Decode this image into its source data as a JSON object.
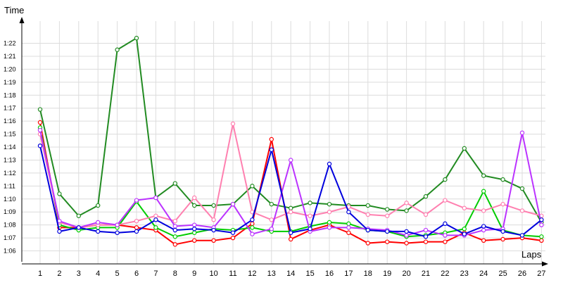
{
  "chart_data": {
    "type": "line",
    "ylabel": "Time",
    "xlabel": "Laps",
    "x": [
      1,
      2,
      3,
      4,
      5,
      6,
      7,
      8,
      9,
      10,
      11,
      12,
      13,
      14,
      15,
      16,
      17,
      18,
      19,
      20,
      21,
      22,
      23,
      24,
      25,
      26,
      27
    ],
    "x_tick_labels": [
      "1",
      "2",
      "3",
      "4",
      "5",
      "6",
      "7",
      "8",
      "9",
      "10",
      "11",
      "12",
      "13",
      "14",
      "15",
      "16",
      "17",
      "18",
      "19",
      "20",
      "21",
      "22",
      "23",
      "24",
      "25",
      "26",
      "27"
    ],
    "y_tick_labels": [
      "1:06",
      "1:07",
      "1:08",
      "1:09",
      "1:10",
      "1:11",
      "1:12",
      "1:13",
      "1:14",
      "1:15",
      "1:16",
      "1:17",
      "1:18",
      "1:19",
      "1:20",
      "1:21",
      "1:22"
    ],
    "ylim": [
      "1:05",
      "1:23.6"
    ],
    "grid": true,
    "series": [
      {
        "color": "#ff0000",
        "values": [
          "1:15.9",
          "1:07.8",
          "1:07.8",
          "1:08.0",
          "1:08.0",
          "1:07.8",
          "1:07.6",
          "1:06.5",
          "1:06.8",
          "1:06.8",
          "1:07.0",
          "1:08.1",
          "1:14.6",
          "1:06.9",
          "1:07.6",
          "1:08.0",
          "1:07.4",
          "1:06.6",
          "1:06.7",
          "1:06.6",
          "1:06.7",
          "1:06.7",
          "1:07.4",
          "1:06.8",
          "1:06.9",
          "1:07.0",
          "1:06.8"
        ]
      },
      {
        "color": "#00cc00",
        "values": [
          "1:15.5",
          "1:08.0",
          "1:07.6",
          "1:07.8",
          "1:07.8",
          "1:09.8",
          "1:07.8",
          "1:07.1",
          "1:07.4",
          "1:07.7",
          "1:07.6",
          "1:07.8",
          "1:07.5",
          "1:07.5",
          "1:07.9",
          "1:08.2",
          "1:08.1",
          "1:07.6",
          "1:07.5",
          "1:07.1",
          "1:07.2",
          "1:07.4",
          "1:07.7",
          "1:10.6",
          "1:07.6",
          "1:07.2",
          "1:07.1"
        ]
      },
      {
        "color": "#228b22",
        "values": [
          "1:16.9",
          "1:10.4",
          "1:08.7",
          "1:09.5",
          "1:21.5",
          "1:22.4",
          "1:10.1",
          "1:11.2",
          "1:09.5",
          "1:09.5",
          "1:09.6",
          "1:11.0",
          "1:09.6",
          "1:09.3",
          "1:09.7",
          "1:09.6",
          "1:09.5",
          "1:09.5",
          "1:09.2",
          "1:09.1",
          "1:10.2",
          "1:11.5",
          "1:13.9",
          "1:11.8",
          "1:11.5",
          "1:10.8",
          "1:08.2"
        ]
      },
      {
        "color": "#ff80b0",
        "values": [
          "1:15.0",
          "1:08.2",
          "1:07.8",
          "1:08.0",
          "1:08.0",
          "1:08.3",
          "1:08.7",
          "1:08.3",
          "1:10.1",
          "1:08.4",
          "1:15.8",
          "1:09.0",
          "1:08.4",
          "1:09.0",
          "1:08.7",
          "1:09.0",
          "1:09.4",
          "1:08.8",
          "1:08.7",
          "1:09.7",
          "1:08.8",
          "1:09.9",
          "1:09.3",
          "1:09.1",
          "1:09.6",
          "1:09.1",
          "1:08.7"
        ]
      },
      {
        "color": "#bb33ff",
        "values": [
          "1:15.3",
          "1:08.3",
          "1:07.8",
          "1:08.2",
          "1:08.0",
          "1:09.9",
          "1:10.1",
          "1:07.9",
          "1:08.0",
          "1:07.8",
          "1:09.6",
          "1:07.3",
          "1:07.7",
          "1:13.0",
          "1:07.5",
          "1:07.8",
          "1:07.8",
          "1:07.7",
          "1:07.6",
          "1:07.2",
          "1:07.6",
          "1:07.2",
          "1:07.2",
          "1:07.6",
          "1:07.7",
          "1:15.1",
          "1:08.0"
        ]
      },
      {
        "color": "#0000dd",
        "values": [
          "1:14.1",
          "1:07.5",
          "1:07.8",
          "1:07.5",
          "1:07.4",
          "1:07.5",
          "1:08.4",
          "1:07.6",
          "1:07.7",
          "1:07.6",
          "1:07.4",
          "1:08.4",
          "1:13.8",
          "1:07.4",
          "1:07.7",
          "1:12.7",
          "1:09.0",
          "1:07.6",
          "1:07.5",
          "1:07.5",
          "1:07.1",
          "1:08.1",
          "1:07.3",
          "1:07.9",
          "1:07.5",
          "1:07.2",
          "1:08.4"
        ]
      }
    ]
  }
}
